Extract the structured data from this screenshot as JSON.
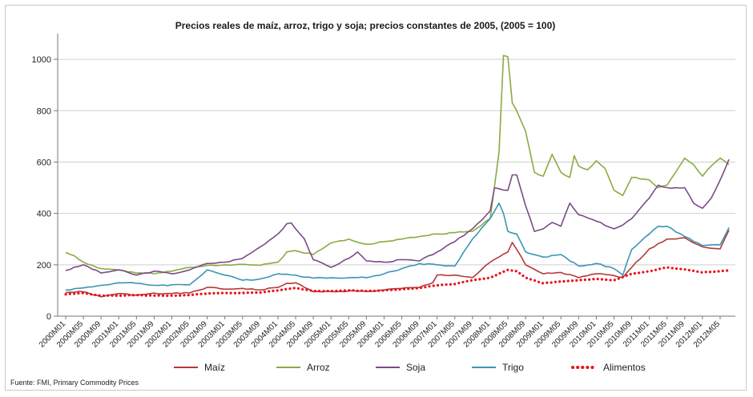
{
  "chart_data": {
    "type": "line",
    "title": "Precios reales de maíz, arroz, trigo y soja; precios constantes de 2005, (2005 = 100)",
    "xlabel": "",
    "ylabel": "",
    "ylim": [
      0,
      1100
    ],
    "yticks": [
      0,
      200,
      400,
      600,
      800,
      1000
    ],
    "grid": "horizontal",
    "legend_position": "bottom",
    "source": "Fuente: FMI, Primary Commodity Prices",
    "x_start": "2000M01",
    "x_end": "2012M07",
    "x_step_months": 1,
    "xtick_labels": [
      "2000M01",
      "2000M05",
      "2000M09",
      "2001M01",
      "2001M05",
      "2001M09",
      "2002M01",
      "2002M05",
      "2002M09",
      "2003M01",
      "2003M05",
      "2003M09",
      "2004M01",
      "2004M05",
      "2004M09",
      "2005M01",
      "2005M05",
      "2005M09",
      "2006M01",
      "2006M05",
      "2006M09",
      "2007M01",
      "2007M05",
      "2007M09",
      "2008M01",
      "2008M05",
      "2008M09",
      "2009M01",
      "2009M05",
      "2009M09",
      "2010M01",
      "2010M05",
      "2010M09",
      "2011M01",
      "2011M05",
      "2011M09",
      "2012M01",
      "2012M05"
    ],
    "series": [
      {
        "name": "Maíz",
        "color": "#b23a3a",
        "style": "solid",
        "anchors": [
          [
            "2000M01",
            92
          ],
          [
            "2000M05",
            95
          ],
          [
            "2000M09",
            75
          ],
          [
            "2001M01",
            88
          ],
          [
            "2001M05",
            82
          ],
          [
            "2001M09",
            90
          ],
          [
            "2002M01",
            88
          ],
          [
            "2002M05",
            90
          ],
          [
            "2002M09",
            112
          ],
          [
            "2003M01",
            105
          ],
          [
            "2003M05",
            108
          ],
          [
            "2003M09",
            102
          ],
          [
            "2004M01",
            112
          ],
          [
            "2004M03",
            128
          ],
          [
            "2004M05",
            130
          ],
          [
            "2004M07",
            112
          ],
          [
            "2004M09",
            95
          ],
          [
            "2005M01",
            96
          ],
          [
            "2005M05",
            98
          ],
          [
            "2005M09",
            96
          ],
          [
            "2006M01",
            102
          ],
          [
            "2006M05",
            108
          ],
          [
            "2006M09",
            112
          ],
          [
            "2006M12",
            130
          ],
          [
            "2007M01",
            160
          ],
          [
            "2007M05",
            160
          ],
          [
            "2007M09",
            150
          ],
          [
            "2008M01",
            210
          ],
          [
            "2008M05",
            250
          ],
          [
            "2008M06",
            287
          ],
          [
            "2008M07",
            260
          ],
          [
            "2008M09",
            200
          ],
          [
            "2009M01",
            165
          ],
          [
            "2009M05",
            170
          ],
          [
            "2009M09",
            150
          ],
          [
            "2010M01",
            165
          ],
          [
            "2010M05",
            158
          ],
          [
            "2010M07",
            150
          ],
          [
            "2010M09",
            190
          ],
          [
            "2011M01",
            262
          ],
          [
            "2011M05",
            300
          ],
          [
            "2011M09",
            305
          ],
          [
            "2012M01",
            270
          ],
          [
            "2012M05",
            262
          ],
          [
            "2012M07",
            335
          ]
        ]
      },
      {
        "name": "Arroz",
        "color": "#8aab44",
        "style": "solid",
        "anchors": [
          [
            "2000M01",
            248
          ],
          [
            "2000M03",
            235
          ],
          [
            "2000M05",
            210
          ],
          [
            "2000M09",
            185
          ],
          [
            "2001M01",
            180
          ],
          [
            "2001M05",
            168
          ],
          [
            "2001M09",
            165
          ],
          [
            "2002M01",
            175
          ],
          [
            "2002M05",
            190
          ],
          [
            "2002M09",
            198
          ],
          [
            "2003M01",
            200
          ],
          [
            "2003M05",
            202
          ],
          [
            "2003M09",
            198
          ],
          [
            "2004M01",
            210
          ],
          [
            "2004M03",
            250
          ],
          [
            "2004M05",
            255
          ],
          [
            "2004M09",
            240
          ],
          [
            "2005M01",
            285
          ],
          [
            "2005M05",
            300
          ],
          [
            "2005M09",
            280
          ],
          [
            "2006M01",
            290
          ],
          [
            "2006M05",
            300
          ],
          [
            "2006M09",
            310
          ],
          [
            "2007M01",
            320
          ],
          [
            "2007M05",
            325
          ],
          [
            "2007M09",
            330
          ],
          [
            "2008M01",
            380
          ],
          [
            "2008M03",
            640
          ],
          [
            "2008M04",
            1015
          ],
          [
            "2008M05",
            1010
          ],
          [
            "2008M06",
            830
          ],
          [
            "2008M07",
            800
          ],
          [
            "2008M09",
            720
          ],
          [
            "2008M11",
            560
          ],
          [
            "2009M01",
            545
          ],
          [
            "2009M03",
            630
          ],
          [
            "2009M05",
            560
          ],
          [
            "2009M07",
            540
          ],
          [
            "2009M08",
            625
          ],
          [
            "2009M09",
            585
          ],
          [
            "2009M11",
            570
          ],
          [
            "2010M01",
            605
          ],
          [
            "2010M03",
            575
          ],
          [
            "2010M05",
            490
          ],
          [
            "2010M07",
            470
          ],
          [
            "2010M09",
            540
          ],
          [
            "2011M01",
            530
          ],
          [
            "2011M03",
            500
          ],
          [
            "2011M05",
            510
          ],
          [
            "2011M09",
            615
          ],
          [
            "2011M11",
            590
          ],
          [
            "2012M01",
            545
          ],
          [
            "2012M03",
            585
          ],
          [
            "2012M05",
            615
          ],
          [
            "2012M07",
            590
          ]
        ]
      },
      {
        "name": "Soja",
        "color": "#7b4a88",
        "style": "solid",
        "anchors": [
          [
            "2000M01",
            178
          ],
          [
            "2000M05",
            200
          ],
          [
            "2000M09",
            168
          ],
          [
            "2001M01",
            180
          ],
          [
            "2001M05",
            160
          ],
          [
            "2001M09",
            175
          ],
          [
            "2002M01",
            165
          ],
          [
            "2002M05",
            180
          ],
          [
            "2002M09",
            205
          ],
          [
            "2003M01",
            210
          ],
          [
            "2003M05",
            225
          ],
          [
            "2003M09",
            270
          ],
          [
            "2004M01",
            320
          ],
          [
            "2004M03",
            360
          ],
          [
            "2004M04",
            363
          ],
          [
            "2004M05",
            340
          ],
          [
            "2004M07",
            300
          ],
          [
            "2004M09",
            220
          ],
          [
            "2005M01",
            190
          ],
          [
            "2005M05",
            225
          ],
          [
            "2005M07",
            250
          ],
          [
            "2005M09",
            215
          ],
          [
            "2006M01",
            210
          ],
          [
            "2006M05",
            220
          ],
          [
            "2006M09",
            215
          ],
          [
            "2007M01",
            250
          ],
          [
            "2007M05",
            290
          ],
          [
            "2007M09",
            340
          ],
          [
            "2008M01",
            410
          ],
          [
            "2008M02",
            500
          ],
          [
            "2008M05",
            490
          ],
          [
            "2008M06",
            550
          ],
          [
            "2008M07",
            550
          ],
          [
            "2008M09",
            430
          ],
          [
            "2008M11",
            330
          ],
          [
            "2009M01",
            340
          ],
          [
            "2009M03",
            365
          ],
          [
            "2009M05",
            350
          ],
          [
            "2009M07",
            440
          ],
          [
            "2009M09",
            395
          ],
          [
            "2010M01",
            370
          ],
          [
            "2010M05",
            340
          ],
          [
            "2010M07",
            355
          ],
          [
            "2010M09",
            380
          ],
          [
            "2011M01",
            460
          ],
          [
            "2011M03",
            510
          ],
          [
            "2011M05",
            500
          ],
          [
            "2011M09",
            500
          ],
          [
            "2011M11",
            440
          ],
          [
            "2012M01",
            420
          ],
          [
            "2012M03",
            460
          ],
          [
            "2012M05",
            530
          ],
          [
            "2012M07",
            610
          ]
        ]
      },
      {
        "name": "Trigo",
        "color": "#3b95b5",
        "style": "solid",
        "anchors": [
          [
            "2000M01",
            102
          ],
          [
            "2000M05",
            110
          ],
          [
            "2000M09",
            120
          ],
          [
            "2001M01",
            130
          ],
          [
            "2001M05",
            128
          ],
          [
            "2001M09",
            120
          ],
          [
            "2002M01",
            122
          ],
          [
            "2002M05",
            122
          ],
          [
            "2002M09",
            180
          ],
          [
            "2003M01",
            160
          ],
          [
            "2003M05",
            140
          ],
          [
            "2003M09",
            145
          ],
          [
            "2004M01",
            165
          ],
          [
            "2004M05",
            160
          ],
          [
            "2004M09",
            148
          ],
          [
            "2005M01",
            150
          ],
          [
            "2005M05",
            150
          ],
          [
            "2005M09",
            150
          ],
          [
            "2006M01",
            165
          ],
          [
            "2006M05",
            185
          ],
          [
            "2006M09",
            205
          ],
          [
            "2007M01",
            200
          ],
          [
            "2007M05",
            195
          ],
          [
            "2007M09",
            300
          ],
          [
            "2008M01",
            380
          ],
          [
            "2008M03",
            440
          ],
          [
            "2008M04",
            400
          ],
          [
            "2008M05",
            330
          ],
          [
            "2008M07",
            320
          ],
          [
            "2008M09",
            250
          ],
          [
            "2009M01",
            230
          ],
          [
            "2009M05",
            240
          ],
          [
            "2009M09",
            195
          ],
          [
            "2010M01",
            205
          ],
          [
            "2010M05",
            185
          ],
          [
            "2010M07",
            160
          ],
          [
            "2010M09",
            260
          ],
          [
            "2011M01",
            320
          ],
          [
            "2011M03",
            350
          ],
          [
            "2011M05",
            350
          ],
          [
            "2011M09",
            310
          ],
          [
            "2012M01",
            275
          ],
          [
            "2012M05",
            278
          ],
          [
            "2012M07",
            345
          ]
        ]
      },
      {
        "name": "Alimentos",
        "color": "#e8141a",
        "style": "dotted",
        "anchors": [
          [
            "2000M01",
            85
          ],
          [
            "2000M05",
            90
          ],
          [
            "2000M09",
            80
          ],
          [
            "2001M01",
            80
          ],
          [
            "2001M05",
            82
          ],
          [
            "2001M09",
            80
          ],
          [
            "2002M01",
            80
          ],
          [
            "2002M05",
            82
          ],
          [
            "2002M09",
            88
          ],
          [
            "2003M01",
            90
          ],
          [
            "2003M05",
            90
          ],
          [
            "2003M09",
            92
          ],
          [
            "2004M01",
            100
          ],
          [
            "2004M05",
            110
          ],
          [
            "2004M09",
            98
          ],
          [
            "2005M01",
            98
          ],
          [
            "2005M05",
            100
          ],
          [
            "2005M09",
            98
          ],
          [
            "2006M01",
            100
          ],
          [
            "2006M05",
            105
          ],
          [
            "2006M09",
            110
          ],
          [
            "2007M01",
            120
          ],
          [
            "2007M05",
            125
          ],
          [
            "2007M09",
            140
          ],
          [
            "2008M01",
            150
          ],
          [
            "2008M05",
            180
          ],
          [
            "2008M07",
            175
          ],
          [
            "2008M09",
            150
          ],
          [
            "2009M01",
            128
          ],
          [
            "2009M05",
            135
          ],
          [
            "2009M09",
            140
          ],
          [
            "2010M01",
            145
          ],
          [
            "2010M05",
            140
          ],
          [
            "2010M09",
            165
          ],
          [
            "2011M01",
            175
          ],
          [
            "2011M05",
            190
          ],
          [
            "2011M09",
            182
          ],
          [
            "2012M01",
            170
          ],
          [
            "2012M05",
            175
          ],
          [
            "2012M07",
            178
          ]
        ]
      }
    ]
  }
}
